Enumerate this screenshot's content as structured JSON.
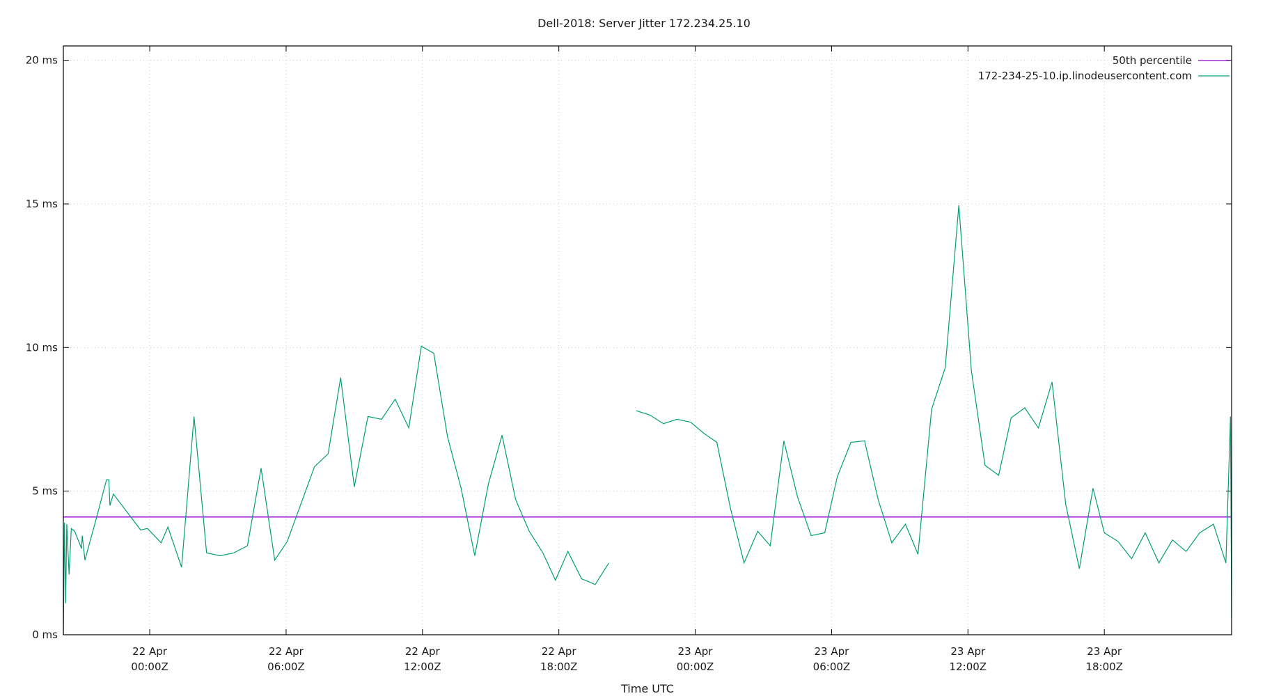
{
  "chart_data": {
    "type": "line",
    "title": "Dell-2018: Server Jitter 172.234.25.10",
    "xlabel": "Time UTC",
    "ylabel": "",
    "ylim": [
      0,
      20.5
    ],
    "xlim_hours": [
      -3.8,
      47.6
    ],
    "y_ticks": [
      {
        "value": 0,
        "label": "0 ms"
      },
      {
        "value": 5,
        "label": "5 ms"
      },
      {
        "value": 10,
        "label": "10 ms"
      },
      {
        "value": 15,
        "label": "15 ms"
      },
      {
        "value": 20,
        "label": "20 ms"
      }
    ],
    "x_ticks": [
      {
        "hour": 0,
        "line1": "22 Apr",
        "line2": "00:00Z"
      },
      {
        "hour": 6,
        "line1": "22 Apr",
        "line2": "06:00Z"
      },
      {
        "hour": 12,
        "line1": "22 Apr",
        "line2": "12:00Z"
      },
      {
        "hour": 18,
        "line1": "22 Apr",
        "line2": "18:00Z"
      },
      {
        "hour": 24,
        "line1": "23 Apr",
        "line2": "00:00Z"
      },
      {
        "hour": 30,
        "line1": "23 Apr",
        "line2": "06:00Z"
      },
      {
        "hour": 36,
        "line1": "23 Apr",
        "line2": "12:00Z"
      },
      {
        "hour": 42,
        "line1": "23 Apr",
        "line2": "18:00Z"
      }
    ],
    "grid": true,
    "legend_position": "top-right",
    "series": [
      {
        "name": "50th percentile",
        "color": "#9400d3",
        "kind": "hline",
        "y": 4.1
      },
      {
        "name": "172-234-25-10.ip.linodeusercontent.com",
        "color": "#009e73",
        "kind": "line",
        "segments": [
          [
            [
              -3.8,
              0.0
            ],
            [
              -3.75,
              3.9
            ],
            [
              -3.7,
              1.1
            ],
            [
              -3.65,
              3.85
            ],
            [
              -3.55,
              2.1
            ],
            [
              -3.45,
              3.7
            ],
            [
              -3.3,
              3.6
            ],
            [
              -3.0,
              3.0
            ],
            [
              -2.97,
              3.45
            ],
            [
              -2.85,
              2.6
            ],
            [
              -2.3,
              4.2
            ],
            [
              -1.9,
              5.4
            ],
            [
              -1.8,
              5.4
            ],
            [
              -1.75,
              4.5
            ],
            [
              -1.6,
              4.9
            ],
            [
              -0.4,
              3.65
            ],
            [
              -0.1,
              3.7
            ],
            [
              0.5,
              3.2
            ],
            [
              0.8,
              3.75
            ],
            [
              1.4,
              2.35
            ],
            [
              1.95,
              7.6
            ],
            [
              2.5,
              2.85
            ],
            [
              3.1,
              2.75
            ],
            [
              3.7,
              2.85
            ],
            [
              4.3,
              3.1
            ],
            [
              4.9,
              5.8
            ],
            [
              5.5,
              2.6
            ],
            [
              6.05,
              3.25
            ],
            [
              7.25,
              5.85
            ],
            [
              7.85,
              6.3
            ],
            [
              8.4,
              8.95
            ],
            [
              9.0,
              5.15
            ],
            [
              9.6,
              7.6
            ],
            [
              10.2,
              7.5
            ],
            [
              10.8,
              8.2
            ],
            [
              11.4,
              7.2
            ],
            [
              11.95,
              10.05
            ],
            [
              12.5,
              9.8
            ],
            [
              13.1,
              6.9
            ],
            [
              13.7,
              5.1
            ],
            [
              14.3,
              2.75
            ],
            [
              14.9,
              5.25
            ],
            [
              15.5,
              6.95
            ],
            [
              16.1,
              4.7
            ],
            [
              16.7,
              3.6
            ],
            [
              17.3,
              2.85
            ],
            [
              17.85,
              1.9
            ],
            [
              18.4,
              2.9
            ],
            [
              19.0,
              1.95
            ],
            [
              19.6,
              1.75
            ],
            [
              20.2,
              2.5
            ]
          ],
          [
            [
              21.4,
              7.8
            ],
            [
              22.0,
              7.65
            ],
            [
              22.6,
              7.35
            ],
            [
              23.2,
              7.5
            ],
            [
              23.8,
              7.4
            ],
            [
              24.4,
              7.0
            ],
            [
              24.95,
              6.7
            ],
            [
              25.55,
              4.4
            ],
            [
              26.15,
              2.5
            ],
            [
              26.75,
              3.6
            ],
            [
              27.3,
              3.1
            ],
            [
              27.9,
              6.75
            ],
            [
              28.5,
              4.8
            ],
            [
              29.1,
              3.45
            ],
            [
              29.7,
              3.55
            ],
            [
              30.25,
              5.5
            ],
            [
              30.85,
              6.7
            ],
            [
              31.45,
              6.75
            ],
            [
              32.05,
              4.7
            ],
            [
              32.65,
              3.2
            ],
            [
              33.25,
              3.85
            ],
            [
              33.8,
              2.8
            ],
            [
              34.4,
              7.85
            ],
            [
              35.0,
              9.3
            ],
            [
              35.6,
              14.95
            ],
            [
              36.15,
              9.2
            ],
            [
              36.75,
              5.9
            ],
            [
              37.35,
              5.55
            ],
            [
              37.9,
              7.55
            ],
            [
              38.5,
              7.9
            ],
            [
              39.1,
              7.2
            ],
            [
              39.7,
              8.8
            ],
            [
              40.3,
              4.55
            ],
            [
              40.9,
              2.3
            ],
            [
              41.5,
              5.1
            ],
            [
              42.0,
              3.55
            ],
            [
              42.6,
              3.25
            ],
            [
              43.2,
              2.65
            ],
            [
              43.8,
              3.55
            ],
            [
              44.4,
              2.5
            ],
            [
              45.0,
              3.3
            ],
            [
              45.6,
              2.9
            ],
            [
              46.2,
              3.55
            ],
            [
              46.8,
              3.85
            ],
            [
              47.35,
              2.5
            ],
            [
              47.55,
              7.6
            ],
            [
              47.6,
              0.6
            ]
          ]
        ]
      }
    ]
  }
}
